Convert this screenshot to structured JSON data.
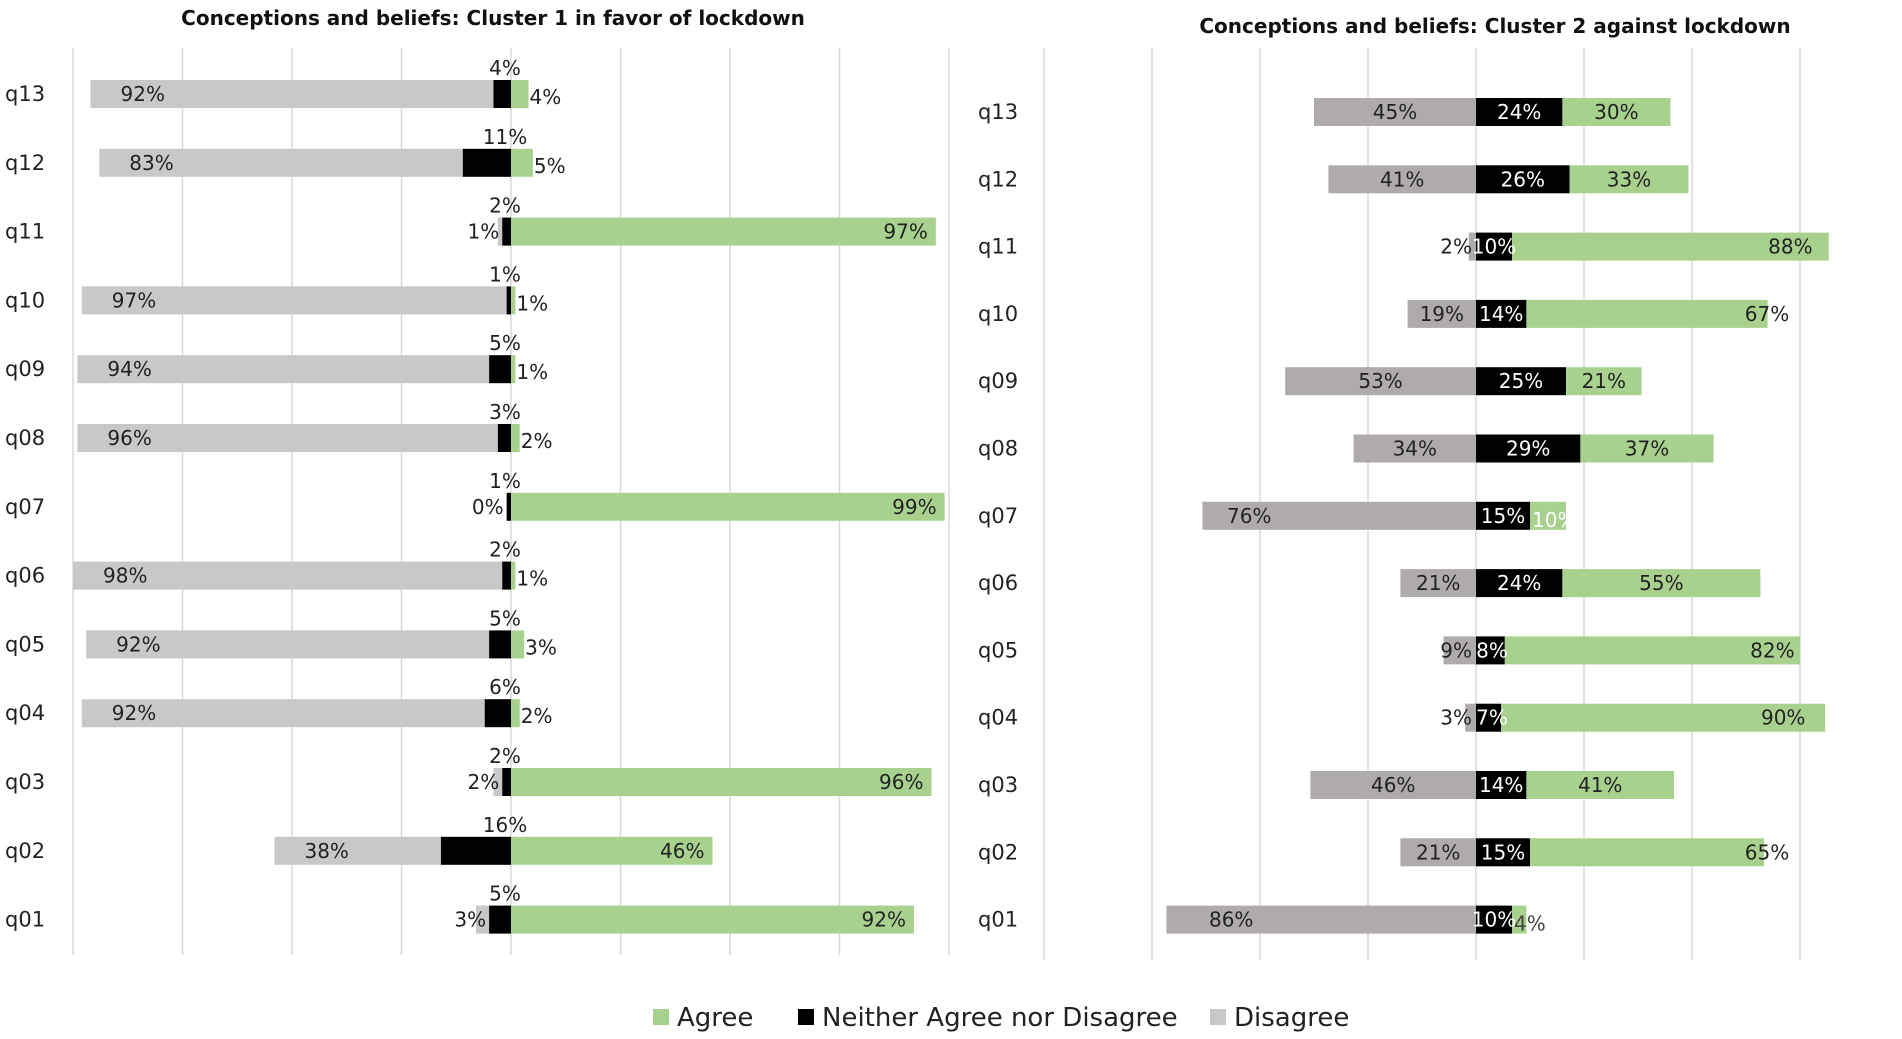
{
  "colors": {
    "agree": "#a9d18e",
    "neutral": "#000000",
    "disagree_cluster1": "#c8c8c8",
    "disagree_cluster2": "#afabab",
    "grid": "#d9d9d9"
  },
  "legend": [
    {
      "key": "agree",
      "label": "Agree"
    },
    {
      "key": "neutral",
      "label": "Neither Agree nor Disagree"
    },
    {
      "key": "disagree",
      "label": "Disagree"
    }
  ],
  "chart_data": [
    {
      "type": "bar",
      "stacked": "diverging",
      "orientation": "horizontal",
      "title": "Conceptions and beliefs: Cluster 1 in favor of lockdown",
      "categories": [
        "q13",
        "q12",
        "q11",
        "q10",
        "q09",
        "q08",
        "q07",
        "q06",
        "q05",
        "q04",
        "q03",
        "q02",
        "q01"
      ],
      "series": [
        {
          "name": "Disagree",
          "values": [
            92,
            83,
            1,
            97,
            94,
            96,
            0,
            98,
            92,
            92,
            2,
            38,
            3
          ],
          "labels": [
            "92%",
            "83%",
            "1%",
            "97%",
            "94%",
            "96%",
            "0%",
            "98%",
            "92%",
            "92%",
            "2%",
            "38%",
            "3%"
          ]
        },
        {
          "name": "Neither Agree nor Disagree",
          "values": [
            4,
            11,
            2,
            1,
            5,
            3,
            1,
            2,
            5,
            6,
            2,
            16,
            5
          ],
          "labels": [
            "4%",
            "11%",
            "2%",
            "1%",
            "5%",
            "3%",
            "1%",
            "2%",
            "5%",
            "6%",
            "2%",
            "16%",
            "5%"
          ]
        },
        {
          "name": "Agree",
          "values": [
            4,
            5,
            97,
            1,
            1,
            2,
            99,
            1,
            3,
            2,
            96,
            46,
            92
          ],
          "labels": [
            "4%",
            "5%",
            "97%",
            "1%",
            "1%",
            "2%",
            "99%",
            "1%",
            "3%",
            "2%",
            "96%",
            "46%",
            "92%"
          ]
        }
      ],
      "xlim": [
        -100,
        100
      ],
      "grid": true
    },
    {
      "type": "bar",
      "stacked": "diverging",
      "orientation": "horizontal",
      "title": "Conceptions and beliefs: Cluster 2 against lockdown",
      "categories": [
        "q13",
        "q12",
        "q11",
        "q10",
        "q09",
        "q08",
        "q07",
        "q06",
        "q05",
        "q04",
        "q03",
        "q02",
        "q01"
      ],
      "series": [
        {
          "name": "Disagree",
          "values": [
            45,
            41,
            2,
            19,
            53,
            34,
            76,
            21,
            9,
            3,
            46,
            21,
            86
          ],
          "labels": [
            "45%",
            "41%",
            "2%",
            "19%",
            "53%",
            "34%",
            "76%",
            "21%",
            "9%",
            "3%",
            "46%",
            "21%",
            "86%"
          ]
        },
        {
          "name": "Neither Agree nor Disagree",
          "values": [
            24,
            26,
            10,
            14,
            25,
            29,
            15,
            24,
            8,
            7,
            14,
            15,
            10
          ],
          "labels": [
            "24%",
            "26%",
            "10%",
            "14%",
            "25%",
            "29%",
            "15%",
            "24%",
            "8%",
            "7%",
            "14%",
            "15%",
            "10%"
          ]
        },
        {
          "name": "Agree",
          "values": [
            30,
            33,
            88,
            67,
            21,
            37,
            10,
            55,
            82,
            90,
            41,
            65,
            4
          ],
          "labels": [
            "30%",
            "33%",
            "88%",
            "67%",
            "21%",
            "37%",
            "10%",
            "55%",
            "82%",
            "90%",
            "41%",
            "65%",
            "4%"
          ]
        }
      ],
      "xlim": [
        -100,
        100
      ],
      "grid": true
    }
  ]
}
